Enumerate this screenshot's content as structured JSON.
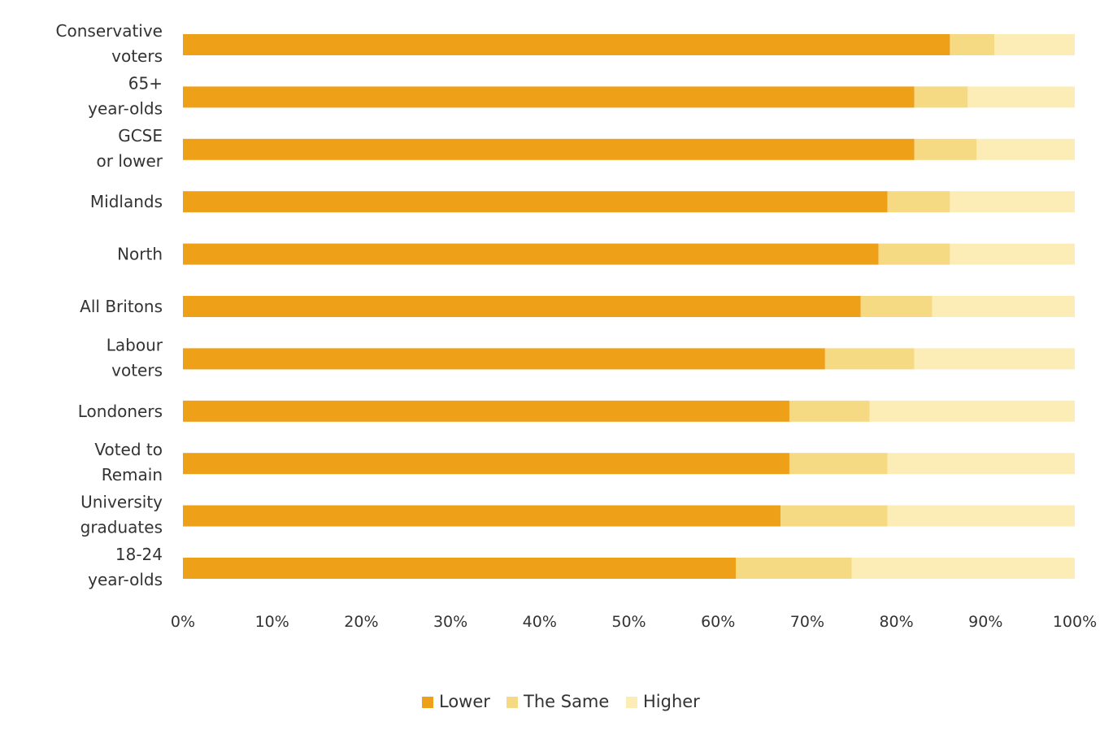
{
  "colors": {
    "Lower": "#EEA019",
    "The Same": "#F5D983",
    "Higher": "#FCEDB7"
  },
  "chart_data": {
    "type": "bar",
    "orientation": "horizontal",
    "stacked": true,
    "categories": [
      [
        "Conservative",
        "voters"
      ],
      [
        "65+",
        "year-olds"
      ],
      [
        "GCSE",
        "or lower"
      ],
      [
        "Midlands"
      ],
      [
        "North"
      ],
      [
        "All Britons"
      ],
      [
        "Labour",
        "voters"
      ],
      [
        "Londoners"
      ],
      [
        "Voted to",
        "Remain"
      ],
      [
        "University",
        "graduates"
      ],
      [
        "18-24",
        "year-olds"
      ]
    ],
    "series": [
      {
        "name": "Lower",
        "values": [
          86,
          82,
          82,
          79,
          78,
          76,
          72,
          68,
          68,
          67,
          62
        ]
      },
      {
        "name": "The Same",
        "values": [
          5,
          6,
          7,
          7,
          8,
          8,
          10,
          9,
          11,
          12,
          13
        ]
      },
      {
        "name": "Higher",
        "values": [
          9,
          12,
          11,
          14,
          14,
          16,
          18,
          23,
          21,
          21,
          25
        ]
      }
    ],
    "x_ticks": [
      "0%",
      "10%",
      "20%",
      "30%",
      "40%",
      "50%",
      "60%",
      "70%",
      "80%",
      "90%",
      "100%"
    ],
    "xlim": [
      0,
      100
    ],
    "grid": false,
    "legend": "bottom-center",
    "title": "",
    "xlabel": "",
    "ylabel": ""
  }
}
